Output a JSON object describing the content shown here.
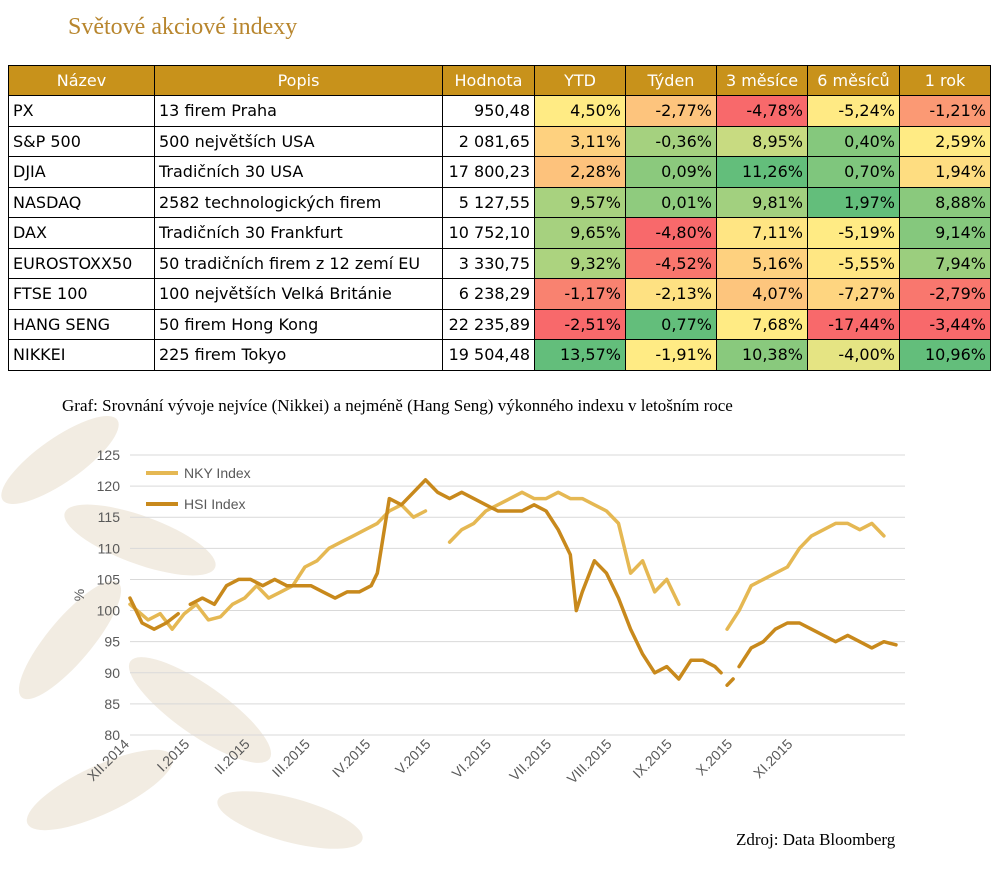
{
  "colors": {
    "header_bg": "#c8921b",
    "title": "#b8862e",
    "nky": "#e5b853",
    "hsi": "#c8891c",
    "heat_low": "#f8696b",
    "heat_mid": "#ffeb84",
    "heat_high": "#63be7b"
  },
  "page_title": "Světové akciové indexy",
  "table": {
    "headers": [
      "Název",
      "Popis",
      "Hodnota",
      "YTD",
      "Týden",
      "3 měsíce",
      "6 měsíců",
      "1 rok"
    ],
    "rows": [
      {
        "name": "PX",
        "desc": "13 firem Praha",
        "value": "950,48",
        "pcts": [
          "4,50%",
          "-2,77%",
          "-4,78%",
          "-5,24%",
          "-1,21%"
        ]
      },
      {
        "name": "S&P 500",
        "desc": "500 největších USA",
        "value": "2 081,65",
        "pcts": [
          "3,11%",
          "-0,36%",
          "8,95%",
          "0,40%",
          "2,59%"
        ]
      },
      {
        "name": "DJIA",
        "desc": "Tradičních 30 USA",
        "value": "17 800,23",
        "pcts": [
          "2,28%",
          "0,09%",
          "11,26%",
          "0,70%",
          "1,94%"
        ]
      },
      {
        "name": "NASDAQ",
        "desc": "2582 technologických firem",
        "value": "5 127,55",
        "pcts": [
          "9,57%",
          "0,01%",
          "9,81%",
          "1,97%",
          "8,88%"
        ]
      },
      {
        "name": "DAX",
        "desc": "Tradičních 30 Frankfurt",
        "value": "10 752,10",
        "pcts": [
          "9,65%",
          "-4,80%",
          "7,11%",
          "-5,19%",
          "9,14%"
        ]
      },
      {
        "name": "EUROSTOXX50",
        "desc": "50 tradičních firem z 12 zemí EU",
        "value": "3 330,75",
        "pcts": [
          "9,32%",
          "-4,52%",
          "5,16%",
          "-5,55%",
          "7,94%"
        ]
      },
      {
        "name": "FTSE 100",
        "desc": "100 největších Velká Británie",
        "value": "6 238,29",
        "pcts": [
          "-1,17%",
          "-2,13%",
          "4,07%",
          "-7,27%",
          "-2,79%"
        ]
      },
      {
        "name": "HANG SENG",
        "desc": "50 firem Hong Kong",
        "value": "22 235,89",
        "pcts": [
          "-2,51%",
          "0,77%",
          "7,68%",
          "-17,44%",
          "-3,44%"
        ]
      },
      {
        "name": "NIKKEI",
        "desc": "225 firem Tokyo",
        "value": "19 504,48",
        "pcts": [
          "13,57%",
          "-1,91%",
          "10,38%",
          "-4,00%",
          "10,96%"
        ]
      }
    ]
  },
  "caption": "Graf: Srovnání vývoje nejvíce (Nikkei) a nejméně (Hang Seng) výkonného indexu v letošním roce",
  "source": "Zdroj: Data Bloomberg",
  "chart_data": {
    "type": "line",
    "title": "",
    "xlabel": "",
    "ylabel": "%",
    "ylim": [
      80,
      125
    ],
    "yticks": [
      80,
      85,
      90,
      95,
      100,
      105,
      110,
      115,
      120,
      125
    ],
    "grid": true,
    "legend": "top-left",
    "xlim": [
      0,
      12.85
    ],
    "x_ticks": [
      {
        "label": "XII.2014",
        "x": 0
      },
      {
        "label": "I.2015",
        "x": 1
      },
      {
        "label": "II.2015",
        "x": 2
      },
      {
        "label": "III.2015",
        "x": 3
      },
      {
        "label": "IV.2015",
        "x": 4
      },
      {
        "label": "V.2015",
        "x": 5
      },
      {
        "label": "VI.2015",
        "x": 6
      },
      {
        "label": "VII.2015",
        "x": 7
      },
      {
        "label": "VIII.2015",
        "x": 8
      },
      {
        "label": "IX.2015",
        "x": 9
      },
      {
        "label": "X.2015",
        "x": 10
      },
      {
        "label": "XI.2015",
        "x": 11
      }
    ],
    "series": [
      {
        "name": "NKY Index",
        "segments": [
          [
            [
              0,
              101
            ],
            [
              0.3,
              98.5
            ],
            [
              0.5,
              99.5
            ],
            [
              0.7,
              97
            ],
            [
              0.9,
              99.5
            ],
            [
              1.1,
              101
            ],
            [
              1.3,
              98.5
            ],
            [
              1.5,
              99
            ],
            [
              1.7,
              101
            ],
            [
              1.9,
              102
            ],
            [
              2.1,
              104
            ],
            [
              2.3,
              102
            ],
            [
              2.5,
              103
            ],
            [
              2.7,
              104
            ],
            [
              2.9,
              107
            ],
            [
              3.1,
              108
            ],
            [
              3.3,
              110
            ],
            [
              3.5,
              111
            ],
            [
              3.7,
              112
            ],
            [
              3.9,
              113
            ],
            [
              4.1,
              114
            ],
            [
              4.3,
              116
            ],
            [
              4.5,
              117
            ],
            [
              4.7,
              115
            ],
            [
              4.9,
              116
            ]
          ],
          [
            [
              5.3,
              111
            ],
            [
              5.5,
              113
            ],
            [
              5.7,
              114
            ],
            [
              5.9,
              116
            ],
            [
              6.1,
              117
            ],
            [
              6.3,
              118
            ],
            [
              6.5,
              119
            ],
            [
              6.7,
              118
            ],
            [
              6.9,
              118
            ],
            [
              7.1,
              119
            ],
            [
              7.3,
              118
            ],
            [
              7.5,
              118
            ],
            [
              7.7,
              117
            ],
            [
              7.9,
              116
            ],
            [
              8.1,
              114
            ],
            [
              8.3,
              106
            ],
            [
              8.5,
              108
            ],
            [
              8.7,
              103
            ],
            [
              8.9,
              105
            ],
            [
              9.1,
              101
            ]
          ],
          [
            [
              9.9,
              97
            ],
            [
              10.1,
              100
            ],
            [
              10.3,
              104
            ],
            [
              10.5,
              105
            ],
            [
              10.7,
              106
            ],
            [
              10.9,
              107
            ],
            [
              11.1,
              110
            ],
            [
              11.3,
              112
            ],
            [
              11.5,
              113
            ],
            [
              11.7,
              114
            ],
            [
              11.9,
              114
            ],
            [
              12.1,
              113
            ],
            [
              12.3,
              114
            ],
            [
              12.5,
              112
            ]
          ]
        ]
      },
      {
        "name": "HSI Index",
        "segments": [
          [
            [
              0,
              102
            ],
            [
              0.2,
              98
            ],
            [
              0.4,
              97
            ],
            [
              0.6,
              98
            ],
            [
              0.8,
              99.5
            ]
          ],
          [
            [
              1,
              101
            ],
            [
              1.2,
              102
            ],
            [
              1.4,
              101
            ],
            [
              1.6,
              104
            ],
            [
              1.8,
              105
            ],
            [
              2,
              105
            ],
            [
              2.2,
              104
            ],
            [
              2.4,
              105
            ],
            [
              2.6,
              104
            ],
            [
              2.8,
              104
            ],
            [
              3,
              104
            ],
            [
              3.2,
              103
            ],
            [
              3.4,
              102
            ],
            [
              3.6,
              103
            ],
            [
              3.8,
              103
            ],
            [
              4,
              104
            ],
            [
              4.1,
              106
            ],
            [
              4.3,
              118
            ],
            [
              4.5,
              117
            ],
            [
              4.7,
              119
            ],
            [
              4.9,
              121
            ],
            [
              5.1,
              119
            ],
            [
              5.3,
              118
            ],
            [
              5.5,
              119
            ],
            [
              5.7,
              118
            ],
            [
              5.9,
              117
            ],
            [
              6.1,
              116
            ],
            [
              6.3,
              116
            ],
            [
              6.5,
              116
            ],
            [
              6.7,
              117
            ],
            [
              6.9,
              116
            ],
            [
              7.1,
              113
            ],
            [
              7.3,
              109
            ],
            [
              7.4,
              100
            ],
            [
              7.5,
              103
            ],
            [
              7.7,
              108
            ],
            [
              7.9,
              106
            ],
            [
              8.1,
              102
            ],
            [
              8.3,
              97
            ],
            [
              8.5,
              93
            ],
            [
              8.7,
              90
            ],
            [
              8.9,
              91
            ],
            [
              9.1,
              89
            ],
            [
              9.3,
              92
            ],
            [
              9.5,
              92
            ],
            [
              9.7,
              91
            ],
            [
              9.8,
              90
            ]
          ],
          [
            [
              9.9,
              88
            ],
            [
              10,
              89
            ]
          ],
          [
            [
              10.1,
              91
            ],
            [
              10.3,
              94
            ],
            [
              10.5,
              95
            ],
            [
              10.7,
              97
            ],
            [
              10.9,
              98
            ],
            [
              11.1,
              98
            ],
            [
              11.3,
              97
            ],
            [
              11.5,
              96
            ],
            [
              11.7,
              95
            ],
            [
              11.9,
              96
            ],
            [
              12.1,
              95
            ],
            [
              12.3,
              94
            ],
            [
              12.5,
              95
            ],
            [
              12.7,
              94.5
            ]
          ]
        ]
      }
    ]
  }
}
